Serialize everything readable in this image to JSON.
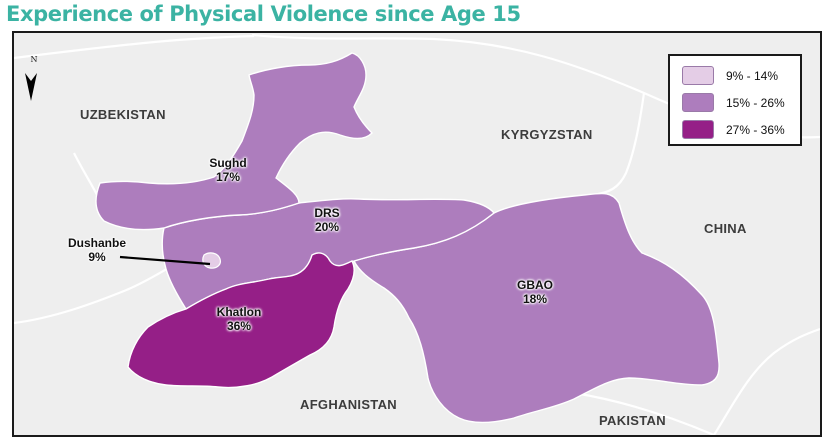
{
  "title": "Experience of Physical Violence since Age 15",
  "north_arrow": "N",
  "colors": {
    "low": "#e4cde6",
    "mid": "#ad7dbd",
    "high": "#951f87",
    "background": "#eeeeee",
    "title": "#3bb3a3"
  },
  "legend": [
    {
      "range": "9% - 14%",
      "color": "#e4cde6"
    },
    {
      "range": "15% - 26%",
      "color": "#ad7dbd"
    },
    {
      "range": "27% - 36%",
      "color": "#951f87"
    }
  ],
  "countries": {
    "uzbekistan": "UZBEKISTAN",
    "kyrgyzstan": "KYRGYZSTAN",
    "china": "CHINA",
    "afghanistan": "AFGHANISTAN",
    "pakistan": "PAKISTAN"
  },
  "regions": {
    "sughd": {
      "name": "Sughd",
      "value": "17%",
      "percent": 17
    },
    "drs": {
      "name": "DRS",
      "value": "20%",
      "percent": 20
    },
    "dushanbe": {
      "name": "Dushanbe",
      "value": "9%",
      "percent": 9
    },
    "khatlon": {
      "name": "Khatlon",
      "value": "36%",
      "percent": 36
    },
    "gbao": {
      "name": "GBAO",
      "value": "18%",
      "percent": 18
    }
  }
}
